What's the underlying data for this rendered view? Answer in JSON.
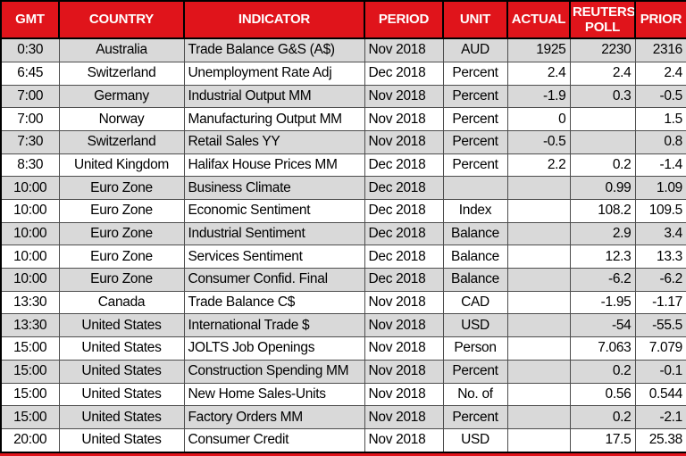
{
  "chart_data": {
    "type": "table",
    "columns": [
      {
        "key": "gmt",
        "label": "GMT",
        "align": "center"
      },
      {
        "key": "country",
        "label": "COUNTRY",
        "align": "center"
      },
      {
        "key": "indicator",
        "label": "INDICATOR",
        "align": "left"
      },
      {
        "key": "period",
        "label": "PERIOD",
        "align": "left"
      },
      {
        "key": "unit",
        "label": "UNIT",
        "align": "center"
      },
      {
        "key": "actual",
        "label": "ACTUAL",
        "align": "right"
      },
      {
        "key": "reuters_poll",
        "label": "REUTERS POLL",
        "align": "right"
      },
      {
        "key": "prior",
        "label": "PRIOR",
        "align": "right"
      }
    ],
    "rows": [
      [
        "0:30",
        "Australia",
        "Trade Balance G&S (A$)",
        "Nov 2018",
        "AUD",
        "1925",
        "2230",
        "2316"
      ],
      [
        "6:45",
        "Switzerland",
        "Unemployment Rate Adj",
        "Dec 2018",
        "Percent",
        "2.4",
        "2.4",
        "2.4"
      ],
      [
        "7:00",
        "Germany",
        "Industrial Output MM",
        "Nov 2018",
        "Percent",
        "-1.9",
        "0.3",
        "-0.5"
      ],
      [
        "7:00",
        "Norway",
        "Manufacturing Output MM",
        "Nov 2018",
        "Percent",
        "0",
        "",
        "1.5"
      ],
      [
        "7:30",
        "Switzerland",
        "Retail Sales YY",
        "Nov 2018",
        "Percent",
        "-0.5",
        "",
        "0.8"
      ],
      [
        "8:30",
        "United Kingdom",
        "Halifax House Prices MM",
        "Dec 2018",
        "Percent",
        "2.2",
        "0.2",
        "-1.4"
      ],
      [
        "10:00",
        "Euro Zone",
        "Business Climate",
        "Dec 2018",
        "",
        "",
        "0.99",
        "1.09"
      ],
      [
        "10:00",
        "Euro Zone",
        "Economic Sentiment",
        "Dec 2018",
        "Index",
        "",
        "108.2",
        "109.5"
      ],
      [
        "10:00",
        "Euro Zone",
        "Industrial Sentiment",
        "Dec 2018",
        "Balance",
        "",
        "2.9",
        "3.4"
      ],
      [
        "10:00",
        "Euro Zone",
        "Services Sentiment",
        "Dec 2018",
        "Balance",
        "",
        "12.3",
        "13.3"
      ],
      [
        "10:00",
        "Euro Zone",
        "Consumer Confid. Final",
        "Dec 2018",
        "Balance",
        "",
        "-6.2",
        "-6.2"
      ],
      [
        "13:30",
        "Canada",
        "Trade Balance C$",
        "Nov 2018",
        "CAD",
        "",
        "-1.95",
        "-1.17"
      ],
      [
        "13:30",
        "United States",
        "International Trade $",
        "Nov 2018",
        "USD",
        "",
        "-54",
        "-55.5"
      ],
      [
        "15:00",
        "United States",
        "JOLTS Job Openings",
        "Nov 2018",
        "Person",
        "",
        "7.063",
        "7.079"
      ],
      [
        "15:00",
        "United States",
        "Construction Spending MM",
        "Nov 2018",
        "Percent",
        "",
        "0.2",
        "-0.1"
      ],
      [
        "15:00",
        "United States",
        "New Home Sales-Units",
        "Nov 2018",
        "No. of",
        "",
        "0.56",
        "0.544"
      ],
      [
        "15:00",
        "United States",
        "Factory Orders MM",
        "Nov 2018",
        "Percent",
        "",
        "0.2",
        "-2.1"
      ],
      [
        "20:00",
        "United States",
        "Consumer Credit",
        "Nov 2018",
        "USD",
        "",
        "17.5",
        "25.38"
      ]
    ]
  },
  "colors": {
    "header_bg": "#e0141b",
    "header_text": "#ffffff",
    "row_stripe": "#d9d9d9",
    "row_plain": "#ffffff",
    "grid_line": "#4d4d4d",
    "outer_border": "#000000",
    "bottom_accent": "#e0141b",
    "text": "#000000"
  }
}
